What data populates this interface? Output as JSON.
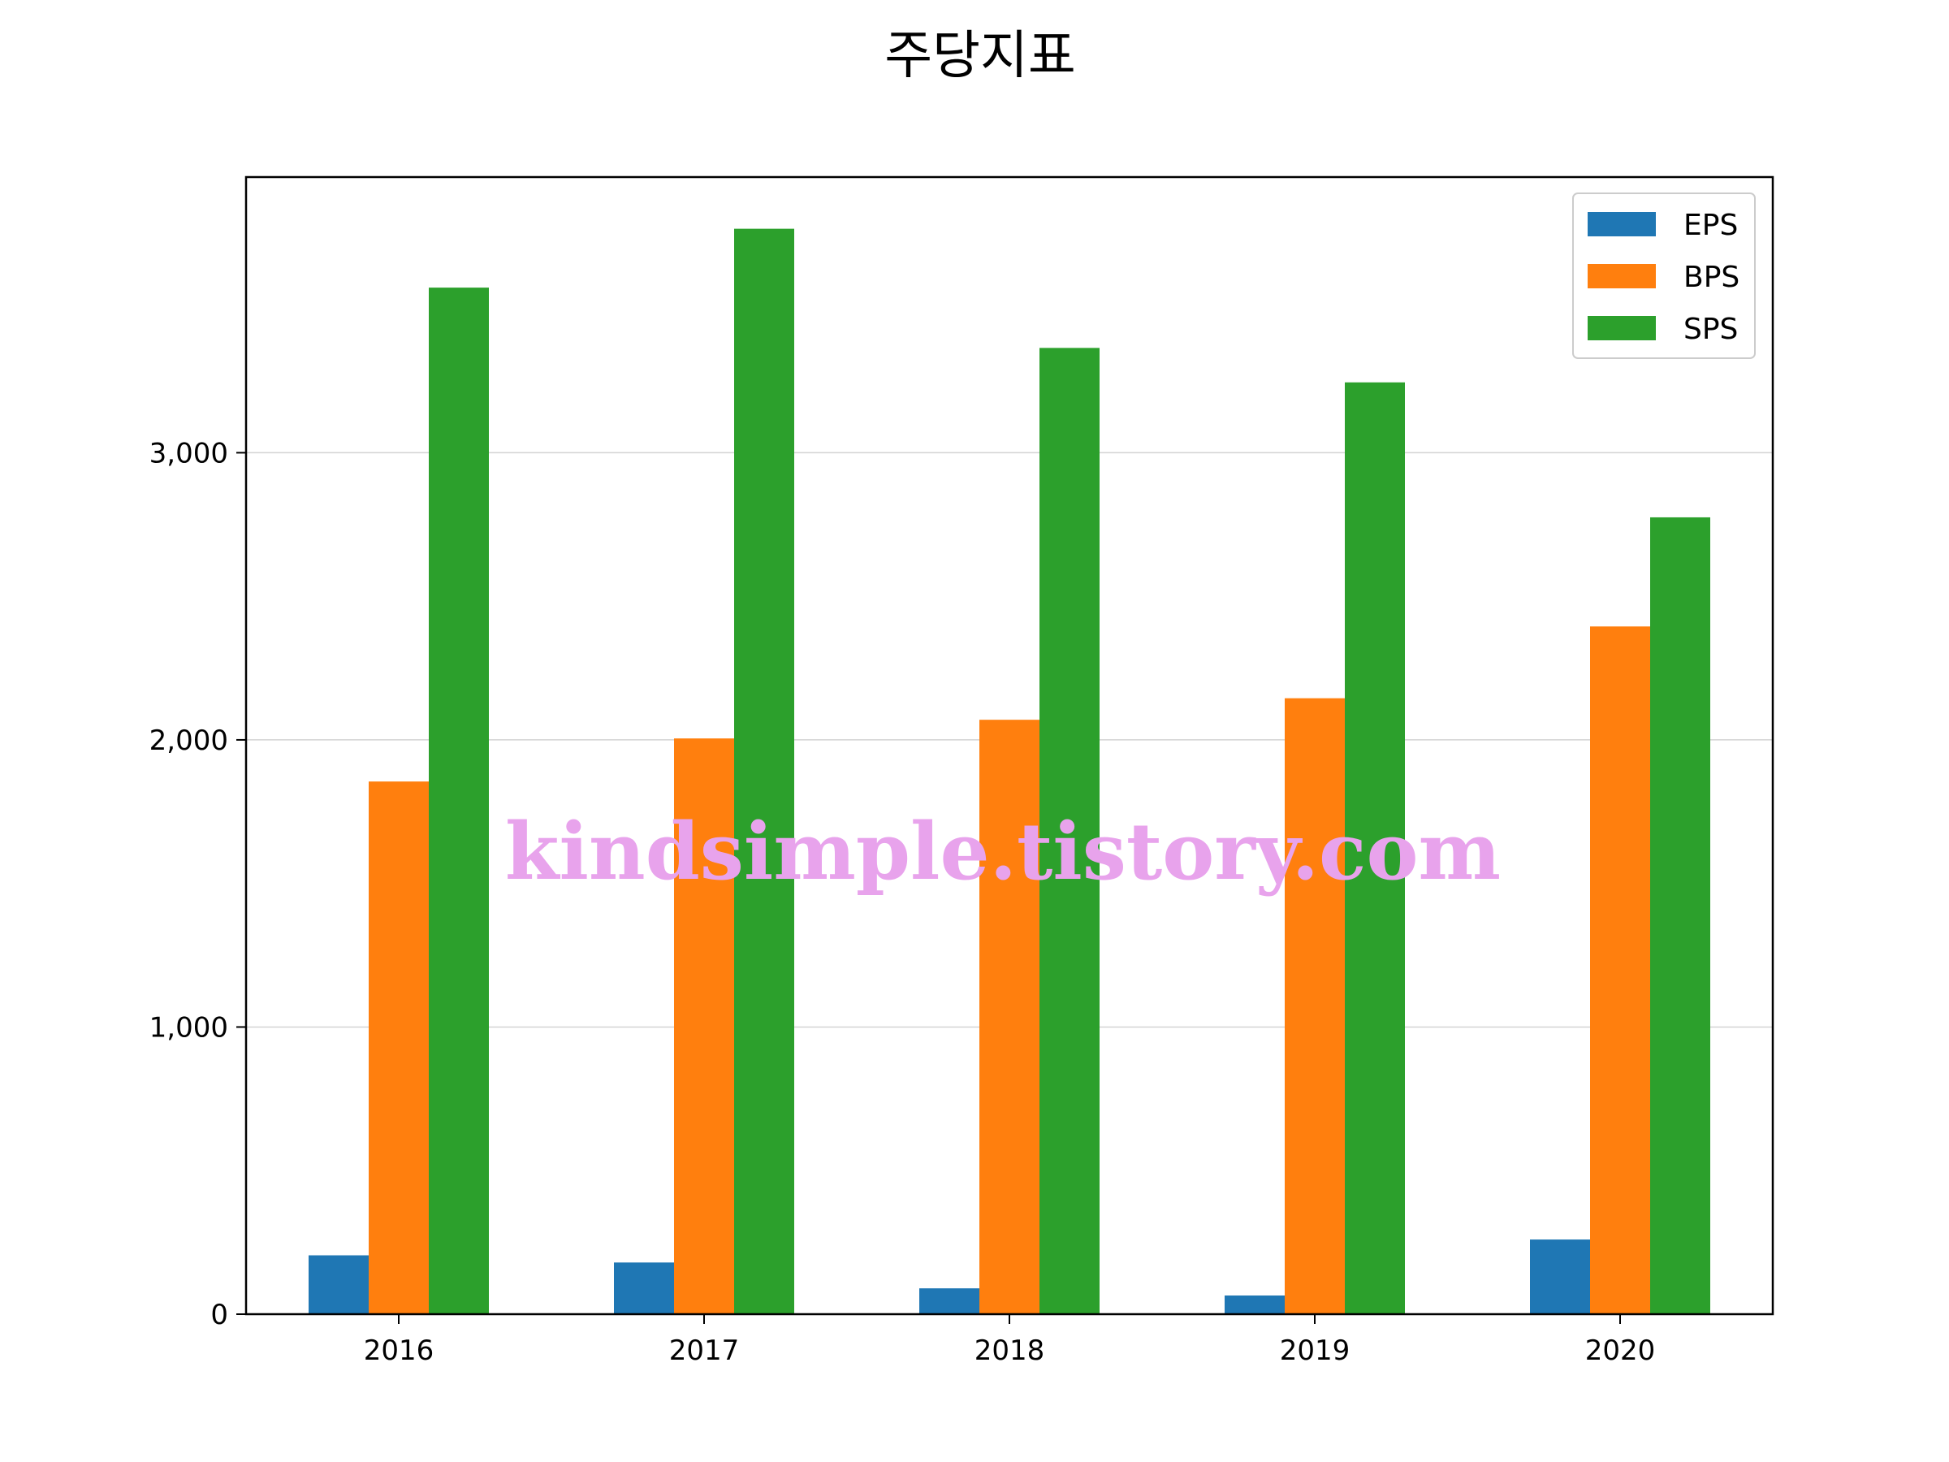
{
  "chart_data": {
    "type": "bar",
    "title": "주당지표",
    "categories": [
      "2016",
      "2017",
      "2018",
      "2019",
      "2020"
    ],
    "series": [
      {
        "name": "EPS",
        "color": "#1f77b4",
        "values": [
          205,
          180,
          90,
          65,
          260
        ]
      },
      {
        "name": "BPS",
        "color": "#ff7f0e",
        "values": [
          1855,
          2005,
          2070,
          2145,
          2395
        ]
      },
      {
        "name": "SPS",
        "color": "#2ca02c",
        "values": [
          3575,
          3780,
          3365,
          3245,
          2775
        ]
      }
    ],
    "ylim": [
      0,
      3960
    ],
    "yticks": [
      0,
      1000,
      2000,
      3000
    ],
    "ytick_labels": [
      "0",
      "1,000",
      "2,000",
      "3,000"
    ],
    "grid": "horizontal",
    "legend": "top-right",
    "xlabel": "",
    "ylabel": ""
  },
  "watermark": "kindsimple.tistory.com"
}
